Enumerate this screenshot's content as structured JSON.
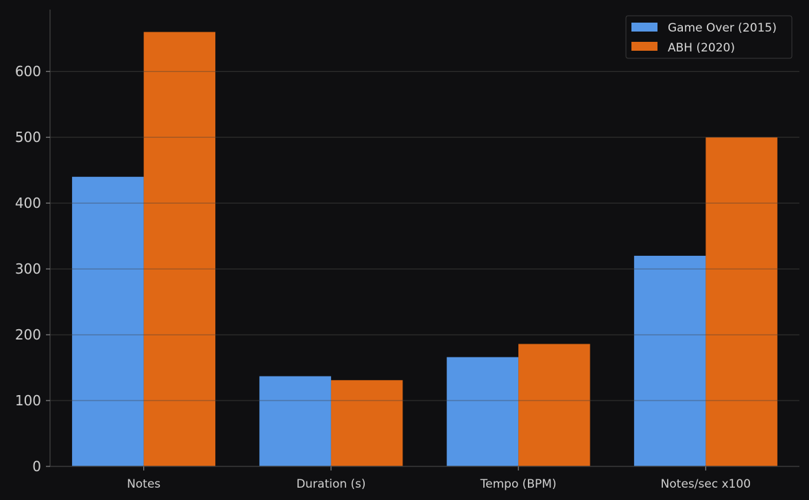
{
  "chart_data": {
    "type": "bar",
    "title": "",
    "xlabel": "",
    "ylabel": "",
    "categories": [
      "Notes",
      "Duration (s)",
      "Tempo (BPM)",
      "Notes/sec x100"
    ],
    "series": [
      {
        "name": "Game Over (2015)",
        "color": "#5596e6",
        "values": [
          440,
          137,
          166,
          320
        ]
      },
      {
        "name": "ABH (2020)",
        "color": "#e06815",
        "values": [
          660,
          131,
          186,
          500
        ]
      }
    ],
    "yticks": [
      0,
      100,
      200,
      300,
      400,
      500,
      600
    ],
    "ylim": [
      0,
      694
    ],
    "grid": true,
    "legend": "top-right",
    "colors": {
      "background": "#0f0f11",
      "axis": "#3a3a3a",
      "grid": "#2a2a2a",
      "text": "#d0d0d0"
    }
  }
}
